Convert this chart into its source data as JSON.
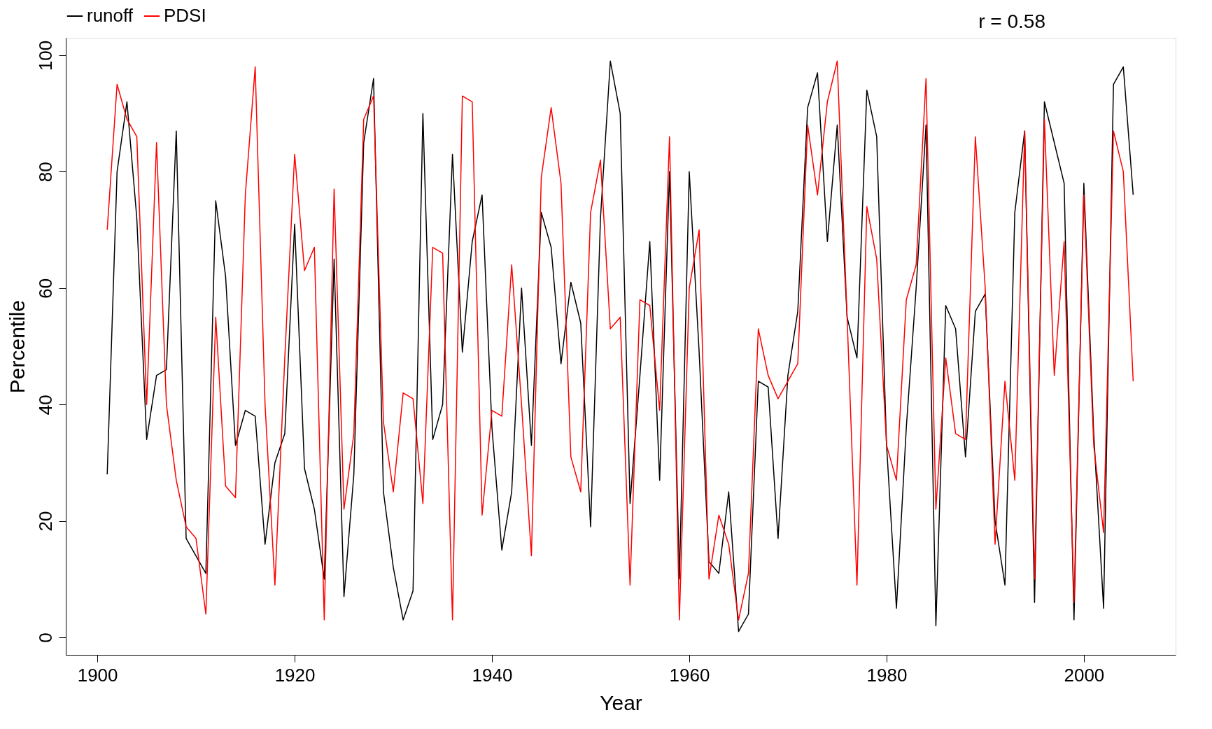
{
  "chart_data": {
    "type": "line",
    "xlabel": "Year",
    "ylabel": "Percentile",
    "x": [
      1901,
      1902,
      1903,
      1904,
      1905,
      1906,
      1907,
      1908,
      1909,
      1910,
      1911,
      1912,
      1913,
      1914,
      1915,
      1916,
      1917,
      1918,
      1919,
      1920,
      1921,
      1922,
      1923,
      1924,
      1925,
      1926,
      1927,
      1928,
      1929,
      1930,
      1931,
      1932,
      1933,
      1934,
      1935,
      1936,
      1937,
      1938,
      1939,
      1940,
      1941,
      1942,
      1943,
      1944,
      1945,
      1946,
      1947,
      1948,
      1949,
      1950,
      1951,
      1952,
      1953,
      1954,
      1955,
      1956,
      1957,
      1958,
      1959,
      1960,
      1961,
      1962,
      1963,
      1964,
      1965,
      1966,
      1967,
      1968,
      1969,
      1970,
      1971,
      1972,
      1973,
      1974,
      1975,
      1976,
      1977,
      1978,
      1979,
      1980,
      1981,
      1982,
      1983,
      1984,
      1985,
      1986,
      1987,
      1988,
      1989,
      1990,
      1991,
      1992,
      1993,
      1994,
      1995,
      1996,
      1997,
      1998,
      1999,
      2000,
      2001,
      2002,
      2003,
      2004,
      2005
    ],
    "series": [
      {
        "name": "runoff",
        "color": "#000000",
        "values": [
          28,
          80,
          92,
          72,
          34,
          45,
          46,
          87,
          17,
          14,
          11,
          75,
          62,
          33,
          39,
          38,
          16,
          30,
          35,
          71,
          29,
          22,
          10,
          65,
          7,
          28,
          85,
          96,
          25,
          12,
          3,
          8,
          90,
          34,
          40,
          83,
          49,
          68,
          76,
          36,
          15,
          25,
          60,
          33,
          73,
          67,
          47,
          61,
          54,
          19,
          72,
          99,
          90,
          23,
          45,
          68,
          27,
          80,
          10,
          80,
          49,
          13,
          11,
          25,
          1,
          4,
          44,
          43,
          17,
          45,
          56,
          91,
          97,
          68,
          88,
          55,
          48,
          94,
          86,
          33,
          5,
          36,
          60,
          88,
          2,
          57,
          53,
          31,
          56,
          59,
          20,
          9,
          73,
          87,
          6,
          92,
          85,
          78,
          3,
          78,
          35,
          5,
          95,
          98,
          76
        ]
      },
      {
        "name": "PDSI",
        "color": "#ff0000",
        "values": [
          70,
          95,
          89,
          86,
          40,
          85,
          40,
          27,
          19,
          17,
          4,
          55,
          26,
          24,
          76,
          98,
          40,
          9,
          48,
          83,
          63,
          67,
          3,
          77,
          22,
          35,
          89,
          93,
          37,
          25,
          42,
          41,
          23,
          67,
          66,
          3,
          93,
          92,
          21,
          39,
          38,
          64,
          40,
          14,
          79,
          91,
          78,
          31,
          25,
          73,
          82,
          53,
          55,
          9,
          58,
          57,
          39,
          86,
          3,
          60,
          70,
          10,
          21,
          16,
          3,
          11,
          53,
          45,
          41,
          44,
          47,
          88,
          76,
          92,
          99,
          55,
          9,
          74,
          65,
          33,
          27,
          58,
          64,
          96,
          22,
          48,
          35,
          34,
          86,
          60,
          16,
          44,
          27,
          87,
          10,
          89,
          45,
          68,
          6,
          76,
          33,
          18,
          87,
          80,
          44
        ]
      }
    ],
    "xlim": [
      1896.8,
      2009.3
    ],
    "ylim": [
      -3,
      103
    ],
    "xticks": [
      1900,
      1920,
      1940,
      1960,
      1980,
      2000
    ],
    "yticks": [
      0,
      20,
      40,
      60,
      80,
      100
    ],
    "grid": false,
    "legend": "top",
    "marker": "none",
    "line_style": "solid",
    "annotations": [
      "r = 0.58"
    ]
  }
}
